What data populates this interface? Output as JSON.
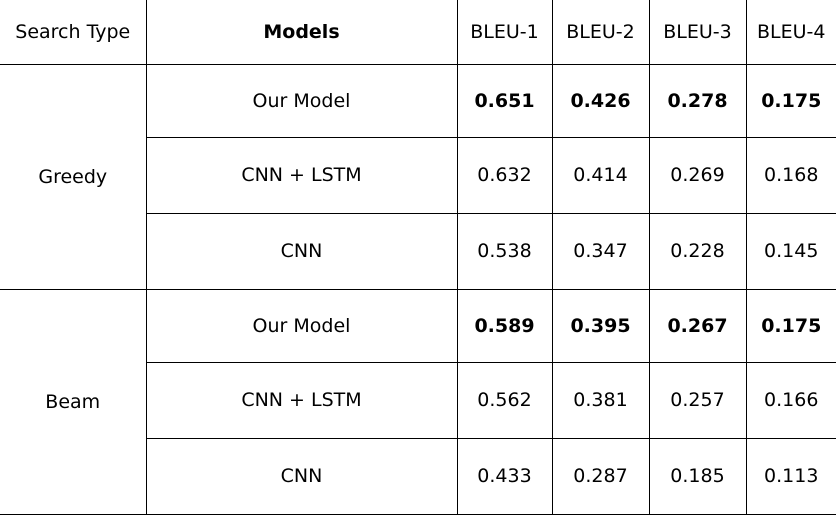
{
  "chart_data": {
    "type": "table",
    "columns": [
      "Search Type",
      "Models",
      "BLEU-1",
      "BLEU-2",
      "BLEU-3",
      "BLEU-4"
    ],
    "groups": [
      {
        "search_type": "Greedy",
        "rows": [
          {
            "model": "Our Model",
            "values": [
              "0.651",
              "0.426",
              "0.278",
              "0.175"
            ],
            "bold": true
          },
          {
            "model": "CNN + LSTM",
            "values": [
              "0.632",
              "0.414",
              "0.269",
              "0.168"
            ],
            "bold": false
          },
          {
            "model": "CNN",
            "values": [
              "0.538",
              "0.347",
              "0.228",
              "0.145"
            ],
            "bold": false
          }
        ]
      },
      {
        "search_type": "Beam",
        "rows": [
          {
            "model": "Our Model",
            "values": [
              "0.589",
              "0.395",
              "0.267",
              "0.175"
            ],
            "bold": true
          },
          {
            "model": "CNN + LSTM",
            "values": [
              "0.562",
              "0.381",
              "0.257",
              "0.166"
            ],
            "bold": false
          },
          {
            "model": "CNN",
            "values": [
              "0.433",
              "0.287",
              "0.185",
              "0.113"
            ],
            "bold": false
          }
        ]
      }
    ]
  }
}
